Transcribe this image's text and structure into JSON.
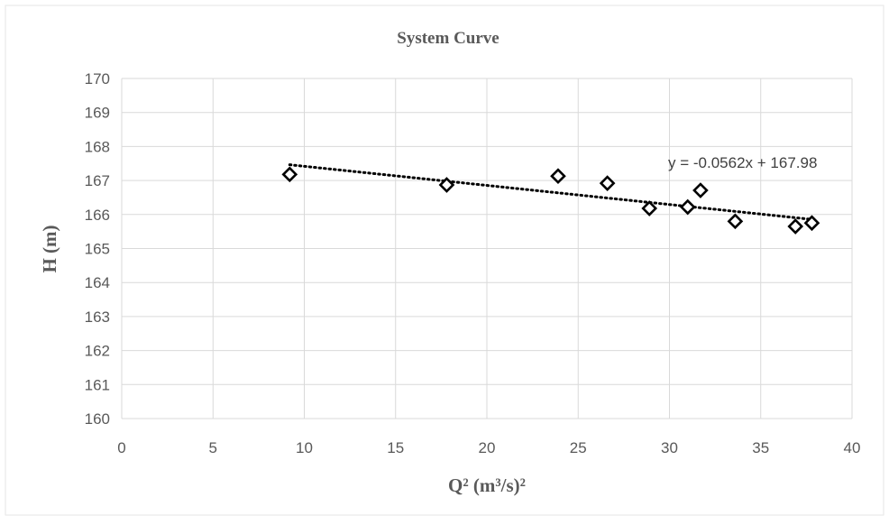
{
  "chart_data": {
    "type": "scatter",
    "title": "System Curve",
    "xlabel": "Q² (m³/s)²",
    "ylabel": "H (m)",
    "xlim": [
      0,
      40
    ],
    "ylim": [
      160,
      170
    ],
    "x_ticks": [
      0,
      5,
      10,
      15,
      20,
      25,
      30,
      35,
      40
    ],
    "y_ticks": [
      160,
      161,
      162,
      163,
      164,
      165,
      166,
      167,
      168,
      169,
      170
    ],
    "grid": true,
    "marker": "diamond-open",
    "colors": {
      "marker": "#000000",
      "grid": "#d9d9d9",
      "title": "#595959",
      "tick": "#595959"
    },
    "series": [
      {
        "points": [
          {
            "x": 9.2,
            "y": 167.18
          },
          {
            "x": 17.8,
            "y": 166.87
          },
          {
            "x": 23.9,
            "y": 167.13
          },
          {
            "x": 26.6,
            "y": 166.92
          },
          {
            "x": 28.9,
            "y": 166.18
          },
          {
            "x": 31.0,
            "y": 166.22
          },
          {
            "x": 31.7,
            "y": 166.71
          },
          {
            "x": 33.6,
            "y": 165.8
          },
          {
            "x": 36.9,
            "y": 165.65
          },
          {
            "x": 37.8,
            "y": 165.75
          }
        ]
      }
    ],
    "trendline": {
      "type": "linear",
      "slope": -0.0562,
      "intercept": 167.98,
      "x_range": [
        9.2,
        37.8
      ],
      "style": "dotted",
      "equation_label": "y = -0.0562x + 167.98"
    }
  }
}
